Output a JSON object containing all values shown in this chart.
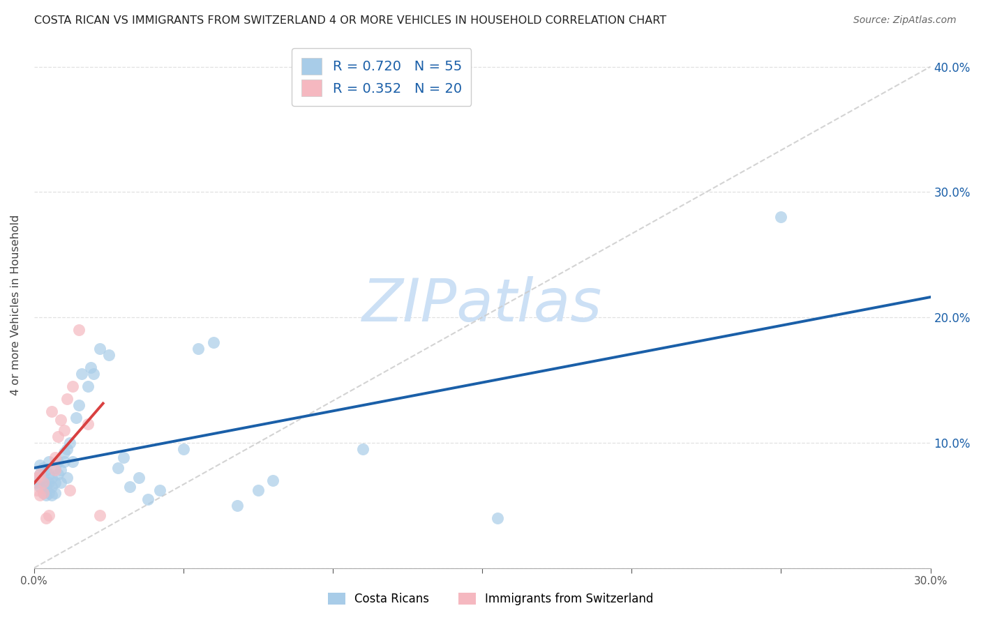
{
  "title": "COSTA RICAN VS IMMIGRANTS FROM SWITZERLAND 4 OR MORE VEHICLES IN HOUSEHOLD CORRELATION CHART",
  "source": "Source: ZipAtlas.com",
  "ylabel": "4 or more Vehicles in Household",
  "legend_label1": "Costa Ricans",
  "legend_label2": "Immigrants from Switzerland",
  "r1": 0.72,
  "n1": 55,
  "r2": 0.352,
  "n2": 20,
  "color1": "#a8cce8",
  "color2": "#f5b8c0",
  "line_color1": "#1a5fa8",
  "line_color2": "#d94040",
  "diag_color": "#cccccc",
  "xmin": 0.0,
  "xmax": 0.3,
  "ymin": 0.0,
  "ymax": 0.42,
  "watermark": "ZIPatlas",
  "watermark_color": "#cce0f5",
  "scatter1_x": [
    0.001,
    0.001,
    0.002,
    0.002,
    0.002,
    0.003,
    0.003,
    0.003,
    0.003,
    0.004,
    0.004,
    0.004,
    0.005,
    0.005,
    0.005,
    0.005,
    0.006,
    0.006,
    0.006,
    0.007,
    0.007,
    0.007,
    0.008,
    0.008,
    0.009,
    0.009,
    0.01,
    0.01,
    0.011,
    0.011,
    0.012,
    0.013,
    0.014,
    0.015,
    0.016,
    0.018,
    0.019,
    0.02,
    0.022,
    0.025,
    0.028,
    0.03,
    0.032,
    0.035,
    0.038,
    0.042,
    0.05,
    0.055,
    0.06,
    0.068,
    0.075,
    0.08,
    0.11,
    0.155,
    0.25
  ],
  "scatter1_y": [
    0.068,
    0.072,
    0.065,
    0.075,
    0.082,
    0.06,
    0.068,
    0.072,
    0.08,
    0.058,
    0.065,
    0.078,
    0.06,
    0.068,
    0.075,
    0.085,
    0.058,
    0.065,
    0.072,
    0.06,
    0.068,
    0.08,
    0.075,
    0.085,
    0.068,
    0.078,
    0.092,
    0.085,
    0.095,
    0.072,
    0.1,
    0.085,
    0.12,
    0.13,
    0.155,
    0.145,
    0.16,
    0.155,
    0.175,
    0.17,
    0.08,
    0.088,
    0.065,
    0.072,
    0.055,
    0.062,
    0.095,
    0.175,
    0.18,
    0.05,
    0.062,
    0.07,
    0.095,
    0.04,
    0.28
  ],
  "scatter2_x": [
    0.001,
    0.001,
    0.002,
    0.002,
    0.003,
    0.003,
    0.004,
    0.005,
    0.006,
    0.007,
    0.007,
    0.008,
    0.009,
    0.01,
    0.011,
    0.012,
    0.013,
    0.015,
    0.018,
    0.022
  ],
  "scatter2_y": [
    0.062,
    0.072,
    0.058,
    0.075,
    0.06,
    0.068,
    0.04,
    0.042,
    0.125,
    0.078,
    0.088,
    0.105,
    0.118,
    0.11,
    0.135,
    0.062,
    0.145,
    0.19,
    0.115,
    0.042
  ],
  "xtick_labels": [
    "0.0%",
    "",
    "",
    "",
    "",
    "",
    "30.0%"
  ],
  "xtick_vals": [
    0.0,
    0.05,
    0.1,
    0.15,
    0.2,
    0.25,
    0.3
  ],
  "ytick_right_vals": [
    0.1,
    0.2,
    0.3,
    0.4
  ],
  "ytick_right_labels": [
    "10.0%",
    "20.0%",
    "30.0%",
    "40.0%"
  ],
  "grid_color": "#dddddd",
  "bg_color": "#ffffff"
}
